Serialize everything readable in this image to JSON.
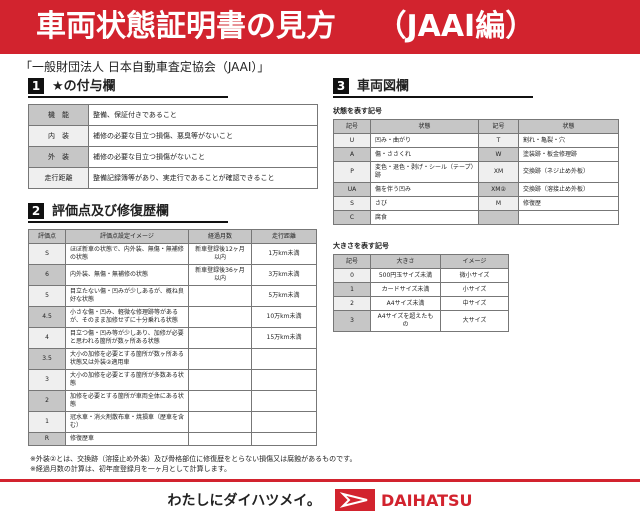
{
  "header": {
    "title": "車両状態証明書の見方　 （JAAI編）"
  },
  "subtitle": "「一般財団法人 日本自動車査定協会（JAAI）」",
  "section1": {
    "num": "1",
    "title": "★の付与欄",
    "rows": [
      [
        "機　能",
        "整備、保証付きであること"
      ],
      [
        "内　装",
        "補修の必要な目立つ損傷、悪臭等がないこと"
      ],
      [
        "外　装",
        "補修の必要な目立つ損傷がないこと"
      ],
      [
        "走行距離",
        "整備記録簿等があり、実走行であることが確認できること"
      ]
    ]
  },
  "section2": {
    "num": "2",
    "title": "評価点及び修復歴欄",
    "headers": [
      "評価点",
      "評価点設定イメージ",
      "経過月数",
      "走行距離"
    ],
    "rows": [
      [
        "S",
        "ほぼ新車の状態で、内外装、無傷・無補修の状態",
        "新車登録後12ヶ月以内",
        "1万km未満"
      ],
      [
        "6",
        "内外装、無傷・無補修の状態",
        "新車登録後36ヶ月以内",
        "3万km未満"
      ],
      [
        "5",
        "目立たない傷・凹みが少しあるが、概ね良好な状態",
        "",
        "5万km未満"
      ],
      [
        "4.5",
        "小さな傷・凹み、軽微な修理跡等があるが、そのまま加修せずに十分乗れる状態",
        "",
        "10万km未満"
      ],
      [
        "4",
        "目立つ傷・凹み等が少しあり、加修が必要と思われる箇所が数ヶ所ある状態",
        "",
        "15万km未満"
      ],
      [
        "3.5",
        "大小の加修を必要とする箇所が数ヶ所ある状態又は外装②適用車",
        "",
        ""
      ],
      [
        "3",
        "大小の加修を必要とする箇所が多数ある状態",
        "",
        ""
      ],
      [
        "2",
        "加修を必要とする箇所が車両全体にある状態",
        "",
        ""
      ],
      [
        "1",
        "冠水車・消火剤散布車・焼損車（歴車を含む）",
        "",
        ""
      ],
      [
        "R",
        "修復歴車",
        "",
        ""
      ]
    ]
  },
  "notes": [
    "※外装②とは、交換跡（溶接止め外装）及び骨格部位に修復歴をとらない損傷又は腐蝕があるものです。",
    "※経過月数の計算は、初年度登録月を一ヶ月として計算します。"
  ],
  "section3": {
    "num": "3",
    "title": "車両図欄",
    "state_label": "状態を表す記号",
    "state_headers": [
      "記号",
      "状態",
      "記号",
      "状態"
    ],
    "state_rows": [
      [
        "U",
        "凹み・曲がり",
        "T",
        "割れ・亀裂・穴"
      ],
      [
        "A",
        "傷・ささくれ",
        "W",
        "塗装跡・板金修理跡"
      ],
      [
        "P",
        "変色・退色・剥げ・シール（テープ）跡",
        "XM",
        "交換跡（ネジ止め外板）"
      ],
      [
        "UA",
        "傷を伴う凹み",
        "XM②",
        "交換跡（溶接止め外板）"
      ],
      [
        "S",
        "さび",
        "M",
        "修復歴"
      ],
      [
        "C",
        "腐食",
        "",
        ""
      ]
    ],
    "size_label": "大きさを表す記号",
    "size_headers": [
      "記号",
      "大きさ",
      "イメージ"
    ],
    "size_rows": [
      [
        "0",
        "500円玉サイズ未満",
        "微小サイズ"
      ],
      [
        "1",
        "カードサイズ未満",
        "小サイズ"
      ],
      [
        "2",
        "A4サイズ未満",
        "中サイズ"
      ],
      [
        "3",
        "A4サイズを超えたもの",
        "大サイズ"
      ]
    ]
  },
  "footer": {
    "slogan": "わたしにダイハツメイ。",
    "brand": "DAIHATSU",
    "brand_color": "#d2232e"
  }
}
